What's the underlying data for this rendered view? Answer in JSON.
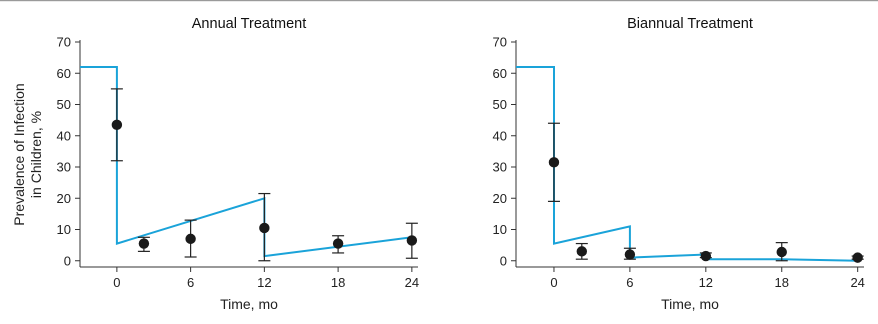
{
  "chart_data": [
    {
      "type": "line",
      "title": "Annual Treatment",
      "xlabel": "Time, mo",
      "ylabel": "Prevalence of Infection in Children, %",
      "ylabel_lines": [
        "Prevalence of Infection",
        "in Children, %"
      ],
      "xlim": [
        -3,
        24.5
      ],
      "ylim": [
        -2,
        70
      ],
      "xticks": [
        0,
        6,
        12,
        18,
        24
      ],
      "yticks": [
        0,
        10,
        20,
        30,
        40,
        50,
        60,
        70
      ],
      "grid": false,
      "series": [
        {
          "kind": "model-line",
          "color": "#1aa3d9",
          "points": [
            [
              -3,
              62
            ],
            [
              0,
              62
            ],
            [
              0,
              5.5
            ],
            [
              12,
              20
            ],
            [
              12,
              1.5
            ],
            [
              24,
              7.5
            ]
          ]
        },
        {
          "kind": "observed-points",
          "color": "#1a1a1a",
          "points": [
            {
              "x": 0,
              "y": 43.5,
              "low": 32,
              "high": 55
            },
            {
              "x": 2.2,
              "y": 5.5,
              "low": 3,
              "high": 7.5
            },
            {
              "x": 6,
              "y": 7,
              "low": 1.2,
              "high": 13
            },
            {
              "x": 12,
              "y": 10.5,
              "low": 0,
              "high": 21.5
            },
            {
              "x": 18,
              "y": 5.5,
              "low": 2.5,
              "high": 8
            },
            {
              "x": 24,
              "y": 6.5,
              "low": 0.8,
              "high": 12
            }
          ]
        }
      ]
    },
    {
      "type": "line",
      "title": "Biannual Treatment",
      "xlabel": "Time, mo",
      "ylabel": "",
      "xlim": [
        -3,
        24.5
      ],
      "ylim": [
        -2,
        70
      ],
      "xticks": [
        0,
        6,
        12,
        18,
        24
      ],
      "yticks": [
        0,
        10,
        20,
        30,
        40,
        50,
        60,
        70
      ],
      "grid": false,
      "series": [
        {
          "kind": "model-line",
          "color": "#1aa3d9",
          "points": [
            [
              -3,
              62
            ],
            [
              0,
              62
            ],
            [
              0,
              5.5
            ],
            [
              6,
              11
            ],
            [
              6,
              1
            ],
            [
              12,
              2
            ],
            [
              12,
              0.5
            ],
            [
              18,
              0.5
            ],
            [
              24,
              0
            ]
          ]
        },
        {
          "kind": "observed-points",
          "color": "#1a1a1a",
          "points": [
            {
              "x": 0,
              "y": 31.5,
              "low": 19,
              "high": 44
            },
            {
              "x": 2.2,
              "y": 3,
              "low": 0.5,
              "high": 5.5
            },
            {
              "x": 6,
              "y": 2,
              "low": 0.5,
              "high": 4
            },
            {
              "x": 12,
              "y": 1.5,
              "low": 1,
              "high": 2.5
            },
            {
              "x": 18,
              "y": 2.8,
              "low": 0,
              "high": 5.8
            },
            {
              "x": 24,
              "y": 1,
              "low": 0.5,
              "high": 1.5
            }
          ]
        }
      ]
    }
  ]
}
